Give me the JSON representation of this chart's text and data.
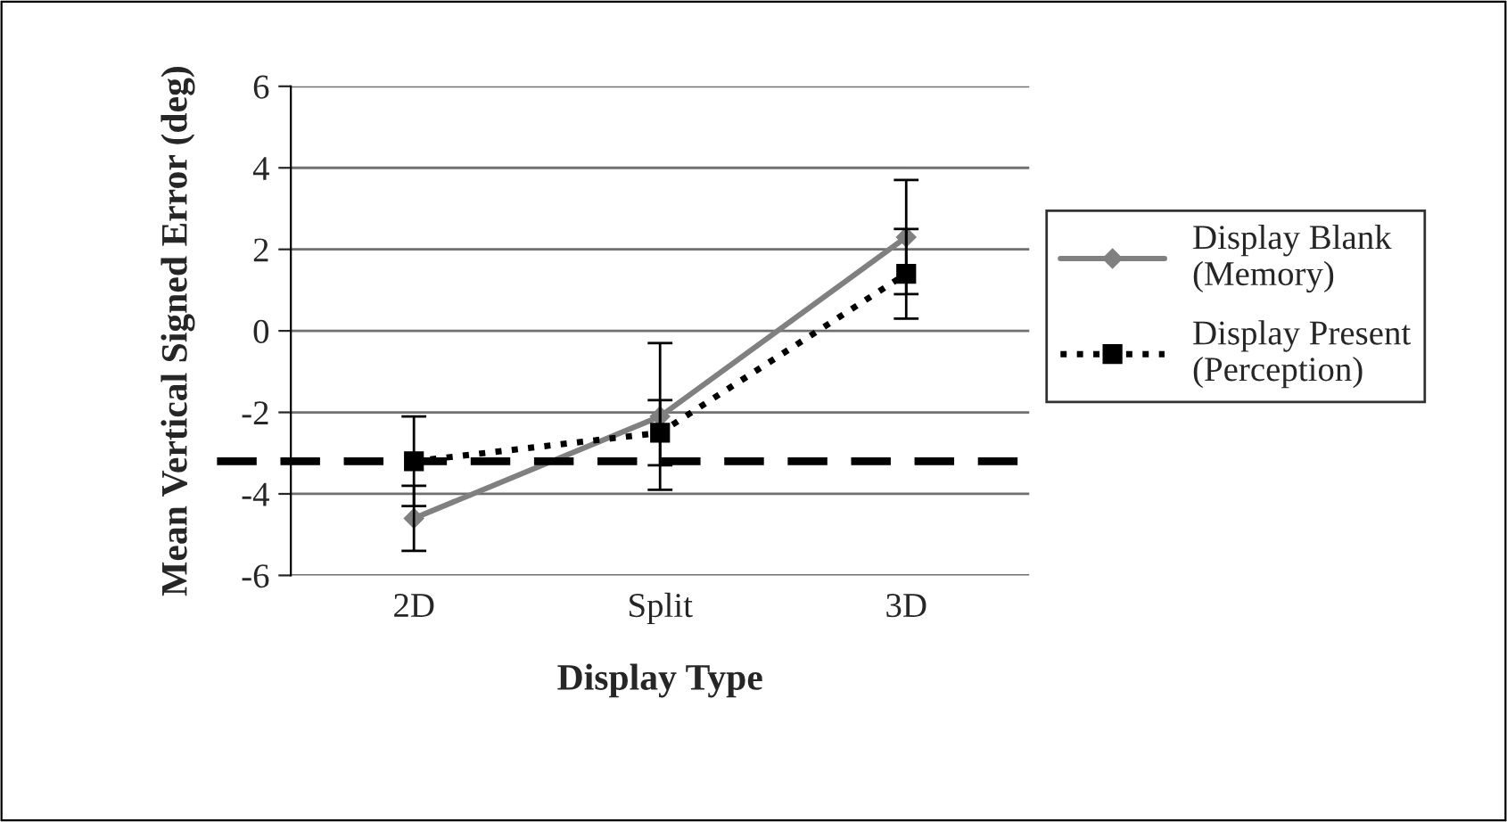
{
  "chart_data": {
    "type": "line",
    "xlabel": "Display Type",
    "ylabel": "Mean Vertical Signed Error (deg)",
    "categories": [
      "2D",
      "Split",
      "3D"
    ],
    "series": [
      {
        "name": "Display Blank (Memory)",
        "color": "#808080",
        "values": [
          -4.6,
          -2.1,
          2.3
        ],
        "errors": [
          0.8,
          1.8,
          1.4
        ],
        "marker": "diamond",
        "line_style": "solid"
      },
      {
        "name": "Display Present (Perception)",
        "color": "#000000",
        "values": [
          -3.2,
          -2.5,
          1.4
        ],
        "errors": [
          1.1,
          0.8,
          1.1
        ],
        "marker": "square",
        "line_style": "dotted"
      }
    ],
    "ref_lines": [
      {
        "axis": "y",
        "value": -3.2,
        "color": "#000000",
        "line_style": "dashed"
      }
    ],
    "ylim": [
      -6,
      6
    ],
    "yticks": [
      -6,
      -4,
      -2,
      0,
      2,
      4,
      6
    ],
    "grid": "y",
    "legend": "right"
  }
}
